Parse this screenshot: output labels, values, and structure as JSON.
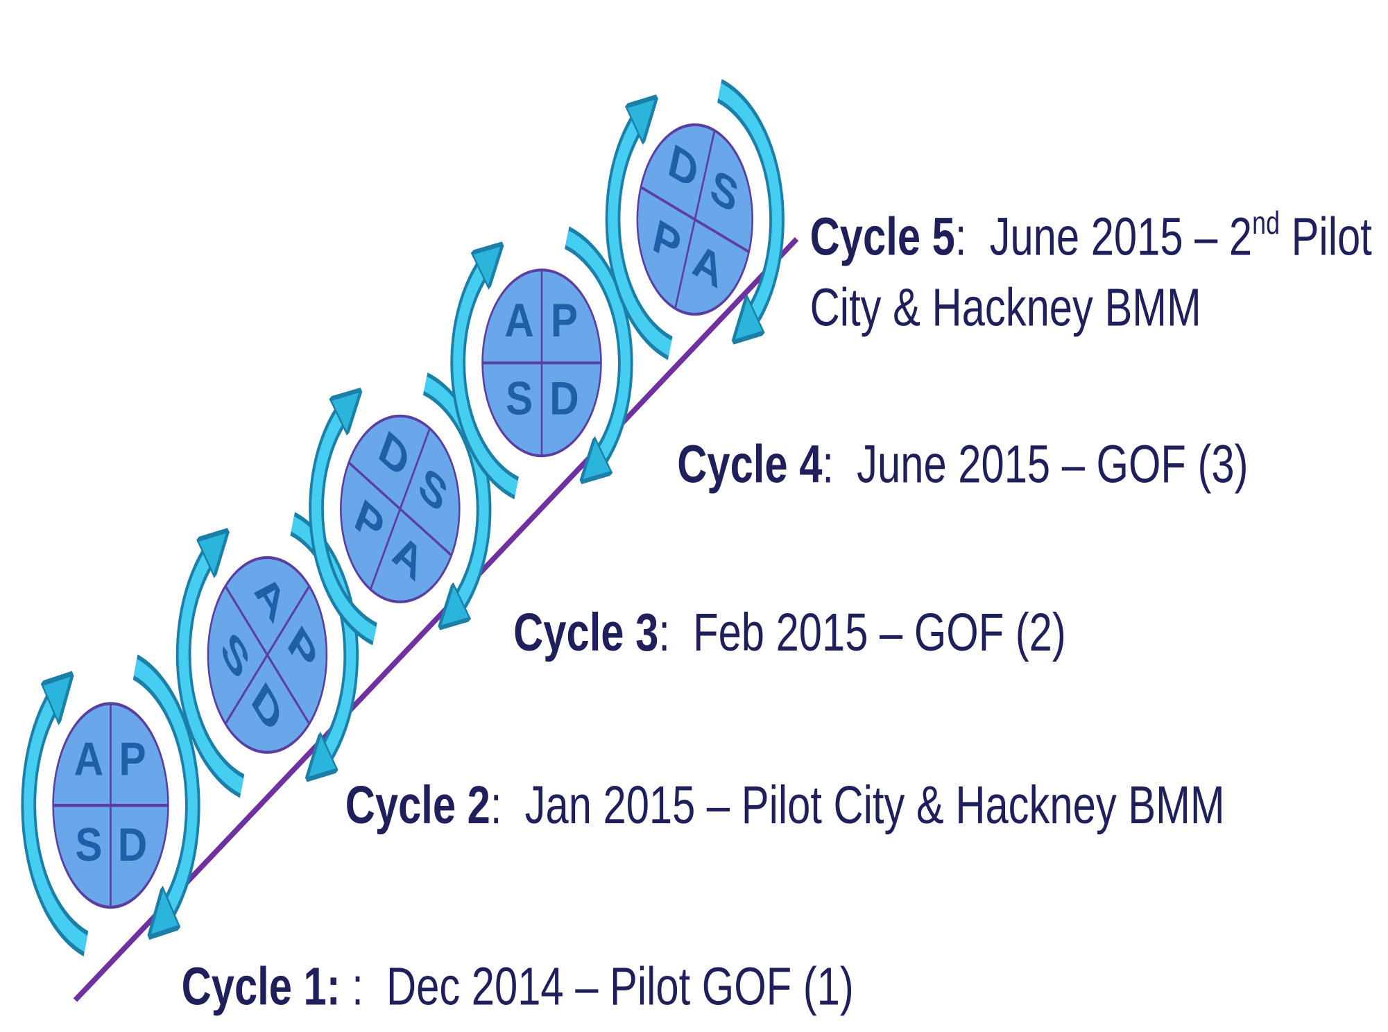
{
  "cycles": [
    {
      "label": "Cycle 1:",
      "text": " :  Dec 2014 – Pilot GOF (1)",
      "quadrants": [
        "A",
        "P",
        "S",
        "D"
      ]
    },
    {
      "label": "Cycle 2",
      "text": ":  Jan 2015 – Pilot City & Hackney BMM",
      "quadrants": [
        "A",
        "P",
        "S",
        "D"
      ]
    },
    {
      "label": "Cycle 3",
      "text": ":  Feb 2015 – GOF (2)",
      "quadrants": [
        "D",
        "S",
        "P",
        "A"
      ]
    },
    {
      "label": "Cycle 4",
      "text": ":  June 2015 – GOF (3)",
      "quadrants": [
        "A",
        "P",
        "S",
        "D"
      ]
    },
    {
      "label": "Cycle 5",
      "text": ":  June 2015 – 2",
      "sup": "nd",
      "text_after": " Pilot",
      "line2": "City & Hackney BMM",
      "quadrants": [
        "D",
        "S",
        "P",
        "A"
      ]
    }
  ]
}
